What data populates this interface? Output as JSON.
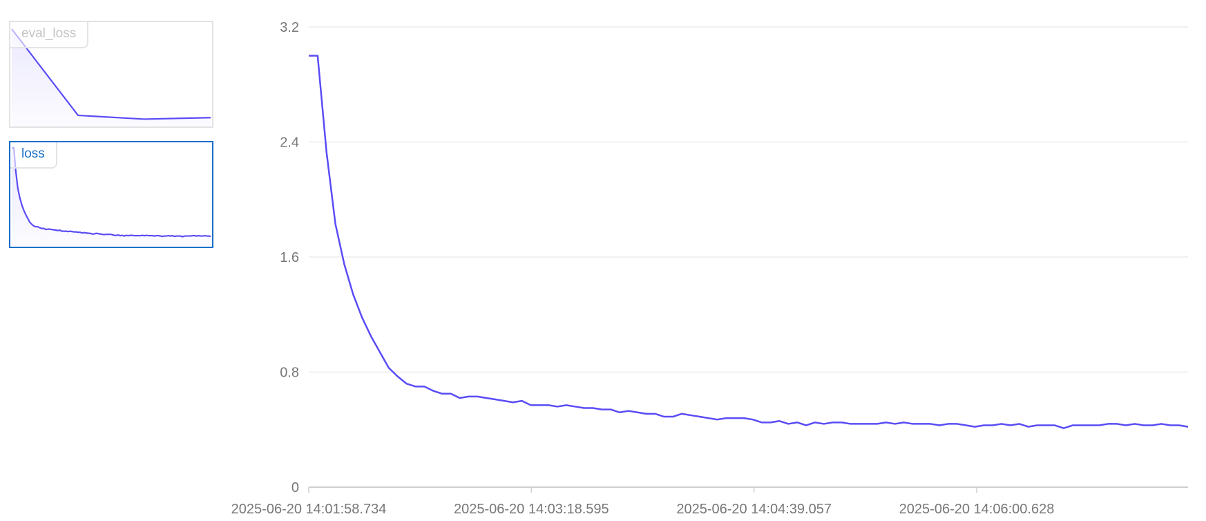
{
  "accent_color": "#5a4cf5",
  "selected_border_color": "#1a6fc9",
  "thumbnails": [
    {
      "label": "eval_loss",
      "values": [
        2.9,
        0.62,
        0.52,
        0.56
      ],
      "selected": false
    },
    {
      "label": "loss",
      "selected": true
    }
  ],
  "chart_data": {
    "type": "line",
    "title": "loss",
    "xlabel": "",
    "ylabel": "",
    "ylim": [
      0,
      3.2
    ],
    "yticks": [
      "0",
      "0.8",
      "1.6",
      "2.4",
      "3.2"
    ],
    "xticks": [
      "2025-06-20 14:01:58.734",
      "2025-06-20 14:03:18.595",
      "2025-06-20 14:04:39.057",
      "2025-06-20 14:06:00.628"
    ],
    "grid": true,
    "color": "#5a4cf5",
    "values": [
      3.0,
      3.0,
      2.33,
      1.83,
      1.55,
      1.34,
      1.18,
      1.05,
      0.94,
      0.83,
      0.77,
      0.72,
      0.7,
      0.7,
      0.67,
      0.65,
      0.65,
      0.62,
      0.63,
      0.63,
      0.62,
      0.61,
      0.6,
      0.59,
      0.6,
      0.57,
      0.57,
      0.57,
      0.56,
      0.57,
      0.56,
      0.55,
      0.55,
      0.54,
      0.54,
      0.52,
      0.53,
      0.52,
      0.51,
      0.51,
      0.49,
      0.49,
      0.51,
      0.5,
      0.49,
      0.48,
      0.47,
      0.48,
      0.48,
      0.48,
      0.47,
      0.45,
      0.45,
      0.46,
      0.44,
      0.45,
      0.43,
      0.45,
      0.44,
      0.45,
      0.45,
      0.44,
      0.44,
      0.44,
      0.44,
      0.45,
      0.44,
      0.45,
      0.44,
      0.44,
      0.44,
      0.43,
      0.44,
      0.44,
      0.43,
      0.42,
      0.43,
      0.43,
      0.44,
      0.43,
      0.44,
      0.42,
      0.43,
      0.43,
      0.43,
      0.41,
      0.43,
      0.43,
      0.43,
      0.43,
      0.44,
      0.44,
      0.43,
      0.44,
      0.43,
      0.43,
      0.44,
      0.43,
      0.43,
      0.42
    ]
  }
}
